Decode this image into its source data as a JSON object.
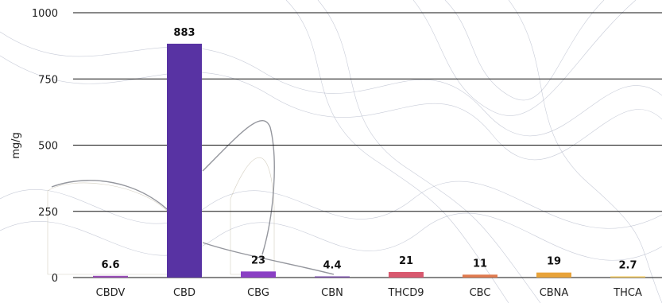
{
  "chart_data": {
    "type": "bar",
    "title": "",
    "xlabel": "",
    "ylabel": "mg/g",
    "ylim": [
      0,
      1000
    ],
    "yticks": [
      0,
      250,
      500,
      750,
      1000
    ],
    "grid": true,
    "categories": [
      "CBDV",
      "CBD",
      "CBG",
      "CBN",
      "THCD9",
      "CBC",
      "CBNA",
      "THCA"
    ],
    "values": [
      6.6,
      883,
      23,
      4.4,
      21,
      11,
      19,
      2.7
    ],
    "value_labels": [
      "6.6",
      "883",
      "23",
      "4.4",
      "21",
      "11",
      "19",
      "2.7"
    ],
    "colors": [
      "#9b4fb8",
      "#5833a3",
      "#8a3fc4",
      "#7a4fa8",
      "#d8596f",
      "#e07a4f",
      "#e8a33a",
      "#f0c75a"
    ]
  }
}
